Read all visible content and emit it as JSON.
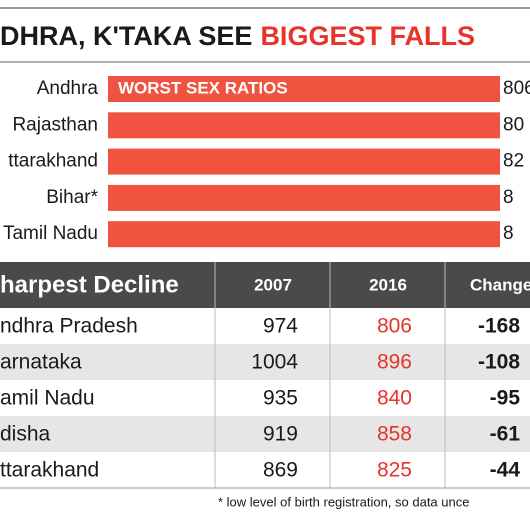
{
  "header": {
    "title_black": "DHRA, K'TAKA SEE",
    "title_red": "BIGGEST FALLS"
  },
  "bars": {
    "tag": "WORST SEX RATIOS",
    "rows": [
      {
        "label": "Andhra",
        "value": "806"
      },
      {
        "label": "Rajasthan",
        "value": "80"
      },
      {
        "label": "ttarakhand",
        "value": "82"
      },
      {
        "label": "Bihar*",
        "value": "8"
      },
      {
        "label": "Tamil Nadu",
        "value": "8"
      }
    ]
  },
  "table": {
    "header": [
      "harpest Decline",
      "2007",
      "2016",
      "Change"
    ],
    "rows": [
      [
        "ndhra Pradesh",
        "974",
        "806",
        "-168"
      ],
      [
        "arnataka",
        "1004",
        "896",
        "-108"
      ],
      [
        "amil Nadu",
        "935",
        "840",
        "-95"
      ],
      [
        "disha",
        "919",
        "858",
        "-61"
      ],
      [
        "ttarakhand",
        "869",
        "825",
        "-44"
      ]
    ]
  },
  "footnote": "* low level of birth registration, so data unce"
}
